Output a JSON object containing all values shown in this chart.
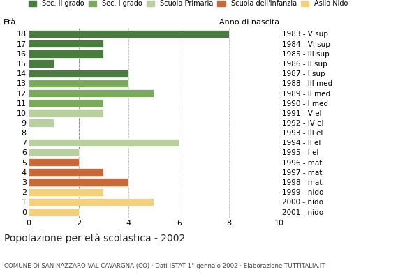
{
  "ages": [
    18,
    17,
    16,
    15,
    14,
    13,
    12,
    11,
    10,
    9,
    8,
    7,
    6,
    5,
    4,
    3,
    2,
    1,
    0
  ],
  "values": [
    8,
    3,
    3,
    1,
    4,
    4,
    5,
    3,
    3,
    1,
    0,
    6,
    2,
    2,
    3,
    4,
    3,
    5,
    2
  ],
  "colors": [
    "#4a7c3f",
    "#4a7c3f",
    "#4a7c3f",
    "#4a7c3f",
    "#4a7c3f",
    "#7aab5a",
    "#7aab5a",
    "#7aab5a",
    "#b8cf9e",
    "#b8cf9e",
    "#b8cf9e",
    "#b8cf9e",
    "#b8cf9e",
    "#c8693a",
    "#c8693a",
    "#c8693a",
    "#f5d07a",
    "#f5d07a",
    "#f5d07a"
  ],
  "right_labels": [
    "1983 - V sup",
    "1984 - VI sup",
    "1985 - III sup",
    "1986 - II sup",
    "1987 - I sup",
    "1988 - III med",
    "1989 - II med",
    "1990 - I med",
    "1991 - V el",
    "1992 - IV el",
    "1993 - III el",
    "1994 - II el",
    "1995 - I el",
    "1996 - mat",
    "1997 - mat",
    "1998 - mat",
    "1999 - nido",
    "2000 - nido",
    "2001 - nido"
  ],
  "legend_labels": [
    "Sec. II grado",
    "Sec. I grado",
    "Scuola Primaria",
    "Scuola dell'Infanzia",
    "Asilo Nido"
  ],
  "legend_colors": [
    "#4a7c3f",
    "#7aab5a",
    "#b8cf9e",
    "#c8693a",
    "#f5d07a"
  ],
  "title": "Popolazione per età scolastica - 2002",
  "subtitle": "COMUNE DI SAN NAZZARO VAL CAVARGNA (CO) · Dati ISTAT 1° gennaio 2002 · Elaborazione TUTTITALIA.IT",
  "eta_label": "Età",
  "anno_label": "Anno di nascita",
  "xlim": [
    0,
    10
  ],
  "xticks": [
    0,
    2,
    4,
    6,
    8,
    10
  ],
  "dashed_line_x": 2,
  "bar_height": 0.8,
  "background_color": "#ffffff",
  "grid_color": "#bbbbbb"
}
